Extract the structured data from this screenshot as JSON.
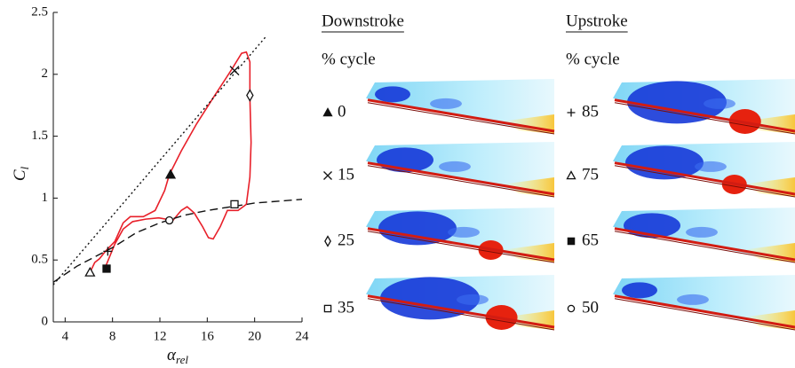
{
  "chart_data": {
    "type": "line",
    "xlabel": "α",
    "xlabel_sub": "rel",
    "ylabel": "C",
    "ylabel_sub": "l",
    "xlim": [
      3,
      24
    ],
    "xticks": [
      4,
      8,
      12,
      16,
      20,
      24
    ],
    "ylim": [
      0,
      2.5
    ],
    "yticks": [
      0,
      0.5,
      1,
      1.5,
      2,
      2.5
    ],
    "series": [
      {
        "color": "#e8202a",
        "style": "solid",
        "x": [
          6.1,
          6.5,
          6.9,
          7.4,
          8.2,
          8.9,
          9.5,
          10.6,
          11.6,
          12.4,
          12.8,
          13.8,
          15.1,
          16.5,
          18.0,
          18.9,
          19.3,
          19.6,
          19.6,
          19.7,
          19.6,
          19.3,
          18.6,
          17.7,
          17.1,
          16.5,
          16.1,
          15.6,
          14.9,
          14.3,
          13.8,
          13.1,
          11.9,
          10.8,
          9.7,
          8.9,
          8.2,
          7.6,
          7.3
        ],
        "values": [
          0.4,
          0.48,
          0.51,
          0.57,
          0.65,
          0.8,
          0.85,
          0.85,
          0.9,
          1.06,
          1.19,
          1.38,
          1.6,
          1.81,
          2.03,
          2.17,
          2.18,
          2.1,
          1.81,
          1.45,
          1.17,
          0.95,
          0.9,
          0.9,
          0.77,
          0.67,
          0.68,
          0.77,
          0.88,
          0.93,
          0.9,
          0.82,
          0.84,
          0.83,
          0.81,
          0.75,
          0.63,
          0.49,
          0.42
        ]
      },
      {
        "color": "#111111",
        "style": "dotted",
        "x": [
          3,
          21
        ],
        "values": [
          0.3,
          2.31
        ]
      },
      {
        "color": "#111111",
        "style": "dashed",
        "x": [
          3,
          5,
          8,
          10,
          12,
          14,
          16,
          18,
          20,
          24
        ],
        "values": [
          0.32,
          0.45,
          0.6,
          0.72,
          0.8,
          0.86,
          0.9,
          0.93,
          0.96,
          0.99
        ]
      }
    ],
    "points": [
      {
        "x": 12.9,
        "y": 1.19,
        "symbol": "triangle-filled"
      },
      {
        "x": 18.3,
        "y": 2.03,
        "symbol": "cross"
      },
      {
        "x": 19.6,
        "y": 1.83,
        "symbol": "diamond"
      },
      {
        "x": 18.3,
        "y": 0.95,
        "symbol": "square-open"
      },
      {
        "x": 7.6,
        "y": 0.57,
        "symbol": "plus"
      },
      {
        "x": 6.1,
        "y": 0.4,
        "symbol": "triangle-open"
      },
      {
        "x": 7.5,
        "y": 0.43,
        "symbol": "square-filled"
      },
      {
        "x": 12.8,
        "y": 0.82,
        "symbol": "circle-open"
      }
    ]
  },
  "panels": [
    {
      "title": "Downstroke",
      "subtitle": "% cycle",
      "items": [
        {
          "symbol": "triangle-filled",
          "label": 0
        },
        {
          "symbol": "cross",
          "label": 15
        },
        {
          "symbol": "diamond",
          "label": 25
        },
        {
          "symbol": "square-open",
          "label": 35
        }
      ]
    },
    {
      "title": "Upstroke",
      "subtitle": "% cycle",
      "items": [
        {
          "symbol": "plus",
          "label": 85
        },
        {
          "symbol": "triangle-open",
          "label": 75
        },
        {
          "symbol": "square-filled",
          "label": 65
        },
        {
          "symbol": "circle-open",
          "label": 50
        }
      ]
    }
  ]
}
